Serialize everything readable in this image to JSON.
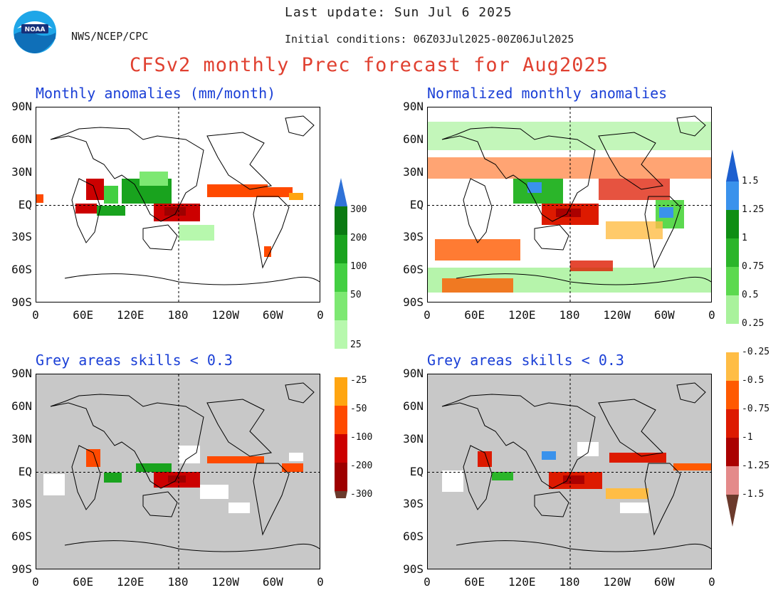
{
  "header": {
    "agency": "NWS/NCEP/CPC",
    "logo_text": "NOAA",
    "last_update": "Last update: Sun Jul 6 2025",
    "initial_conditions": "Initial conditions: 06Z03Jul2025-00Z06Jul2025",
    "title": "CFSv2 monthly Prec forecast for Aug2025"
  },
  "axes": {
    "lat_labels": [
      "90N",
      "90N",
      "60N",
      "30N",
      "EQ",
      "30S",
      "60S",
      "90S"
    ],
    "lon_labels": [
      "0",
      "60E",
      "120E",
      "180",
      "120W",
      "60W",
      "0"
    ]
  },
  "panels": [
    {
      "id": "anom",
      "title": "Monthly anomalies (mm/month)"
    },
    {
      "id": "norm",
      "title": "Normalized monthly anomalies"
    },
    {
      "id": "anom-skill",
      "title": "Grey areas skills < 0.3"
    },
    {
      "id": "norm-skill",
      "title": "Grey areas skills < 0.3"
    }
  ],
  "colorbars": {
    "anomaly": {
      "labels": [
        "300",
        "200",
        "100",
        "50",
        "25",
        "-25",
        "-50",
        "-100",
        "-200",
        "-300"
      ],
      "colors_top": [
        "#0a7a12",
        "#19a31e",
        "#43cf42",
        "#7de872",
        "#b7f8ad"
      ],
      "colors_bottom": [
        "#ffa511",
        "#ff4a00",
        "#cc0000",
        "#9e0000"
      ],
      "cap_top": "#2f72d8",
      "cap_bottom": "#6b3a2c"
    },
    "normalized": {
      "labels": [
        "1.5",
        "1.25",
        "1",
        "0.75",
        "0.5",
        "0.25",
        "-0.25",
        "-0.5",
        "-0.75",
        "-1",
        "-1.25",
        "-1.5"
      ],
      "colors_top": [
        "#3a92ec",
        "#0f8e14",
        "#2bb52a",
        "#5cd94f",
        "#a9f29c"
      ],
      "colors_bottom": [
        "#ffbd45",
        "#ff5a00",
        "#dd1a00",
        "#aa0000",
        "#e48a8a"
      ],
      "cap_top": "#1d5fcf",
      "cap_bottom": "#6b3a2c"
    }
  },
  "colors": {
    "grey_low_skill": "#c8c8c8",
    "title_red": "#e04030",
    "title_blue": "#1a3fd6"
  }
}
